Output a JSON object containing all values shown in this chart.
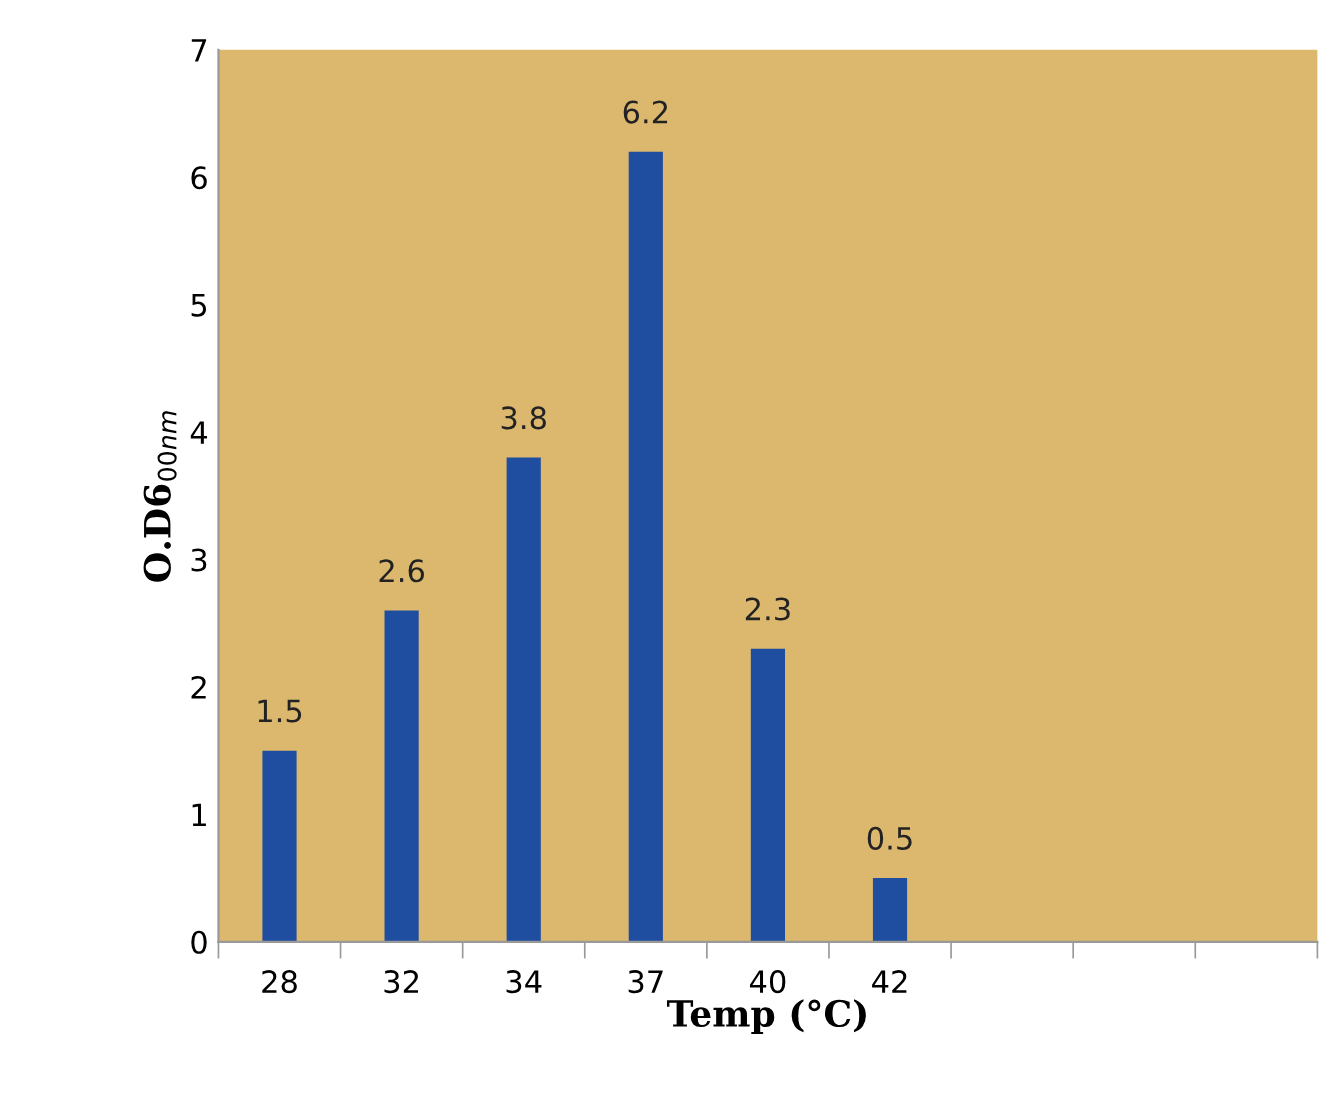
{
  "chart_data": {
    "type": "bar",
    "categories": [
      "28",
      "32",
      "34",
      "37",
      "40",
      "42",
      null,
      null,
      null
    ],
    "values": [
      1.5,
      2.6,
      3.8,
      6.2,
      2.3,
      0.5,
      null,
      null,
      null
    ],
    "color": "#1f4ea0",
    "xlabel": "Temp (°C)",
    "ylabel": "O.D6$_{00nm}$",
    "ylim": [
      0,
      7
    ],
    "yticks": [
      0,
      1,
      2,
      3,
      4,
      5,
      6,
      7
    ],
    "data_labels": true,
    "grid": false,
    "legend": false
  }
}
